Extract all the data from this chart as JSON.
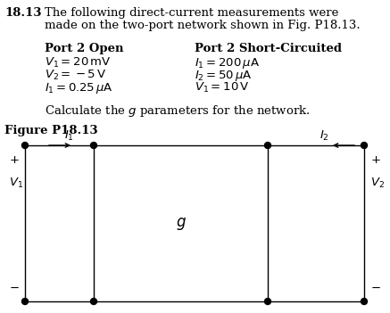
{
  "title_num": "18.13",
  "title_line1": "The following direct-current measurements were",
  "title_line2": "made on the two-port network shown in Fig. P18.13.",
  "col1_header": "Port 2 Open",
  "col2_header": "Port 2 Short-Circuited",
  "col1_lines": [
    "$V_1 = 20\\,\\mathrm{mV}$",
    "$V_2 = -5\\,\\mathrm{V}$",
    "$I_1 = 0.25\\,\\mu\\mathrm{A}$"
  ],
  "col2_lines": [
    "$I_1 = 200\\,\\mu\\mathrm{A}$",
    "$I_2 = 50\\,\\mu\\mathrm{A}$",
    "$V_1 = 10\\,\\mathrm{V}$"
  ],
  "calc_text": "Calculate the $g$ parameters for the network.",
  "fig_label": "Figure P18.13",
  "box_label": "$g$",
  "bg_color": "#ffffff",
  "text_color": "#000000",
  "font_size": 9.5
}
